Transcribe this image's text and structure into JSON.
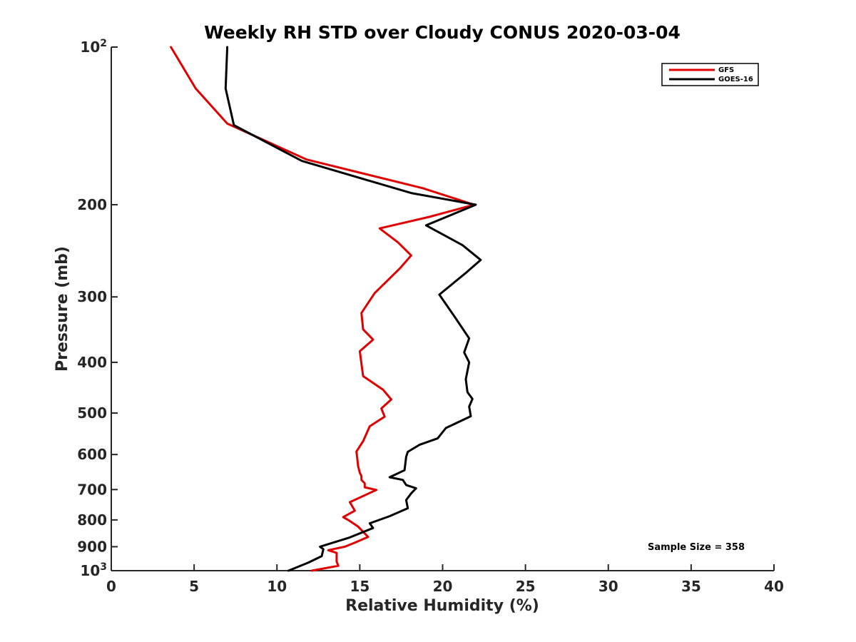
{
  "chart_data": {
    "type": "line",
    "title": "Weekly RH STD over Cloudy CONUS 2020-03-04",
    "xlabel": "Relative Humidity (%)",
    "ylabel": "Pressure (mb)",
    "xlim": [
      0,
      40
    ],
    "ylim": [
      100,
      1000
    ],
    "y_scale": "log",
    "y_reversed": true,
    "x_ticks": [
      "0",
      "5",
      "10",
      "15",
      "20",
      "25",
      "30",
      "35",
      "40"
    ],
    "y_ticks": [
      {
        "value": 100,
        "base": "10",
        "exp": "2"
      },
      {
        "value": 200,
        "label": "200"
      },
      {
        "value": 300,
        "label": "300"
      },
      {
        "value": 400,
        "label": "400"
      },
      {
        "value": 500,
        "label": "500"
      },
      {
        "value": 600,
        "label": "600"
      },
      {
        "value": 700,
        "label": "700"
      },
      {
        "value": 800,
        "label": "800"
      },
      {
        "value": 900,
        "label": "900"
      },
      {
        "value": 1000,
        "base": "10",
        "exp": "3"
      }
    ],
    "grid": false,
    "legend_position": "top-right",
    "annotation": "Sample Size = 358",
    "series": [
      {
        "name": "GFS",
        "color": "#e00000",
        "points": [
          [
            3.6,
            100
          ],
          [
            5.1,
            120
          ],
          [
            7.0,
            140
          ],
          [
            11.8,
            164
          ],
          [
            18.8,
            186
          ],
          [
            21.9,
            200
          ],
          [
            19.2,
            211
          ],
          [
            16.2,
            222
          ],
          [
            17.3,
            236
          ],
          [
            18.1,
            250
          ],
          [
            17.4,
            265
          ],
          [
            15.9,
            295
          ],
          [
            15.1,
            322
          ],
          [
            15.2,
            346
          ],
          [
            15.8,
            362
          ],
          [
            15.0,
            381
          ],
          [
            15.2,
            425
          ],
          [
            16.4,
            451
          ],
          [
            16.9,
            471
          ],
          [
            16.3,
            490
          ],
          [
            16.5,
            508
          ],
          [
            15.6,
            530
          ],
          [
            15.2,
            566
          ],
          [
            14.8,
            592
          ],
          [
            14.9,
            632
          ],
          [
            15.0,
            650
          ],
          [
            15.1,
            660
          ],
          [
            15.1,
            671
          ],
          [
            15.3,
            681
          ],
          [
            15.3,
            693
          ],
          [
            16.0,
            701
          ],
          [
            14.4,
            740
          ],
          [
            14.7,
            768
          ],
          [
            14.0,
            790
          ],
          [
            14.3,
            800
          ],
          [
            14.9,
            824
          ],
          [
            15.5,
            862
          ],
          [
            14.7,
            884
          ],
          [
            14.1,
            900
          ],
          [
            13.1,
            914
          ],
          [
            13.6,
            925
          ],
          [
            13.6,
            960
          ],
          [
            13.7,
            979
          ],
          [
            12.1,
            1000
          ]
        ]
      },
      {
        "name": "GOES-16",
        "color": "#000000",
        "points": [
          [
            7.0,
            100
          ],
          [
            6.9,
            120
          ],
          [
            7.4,
            141
          ],
          [
            11.5,
            165
          ],
          [
            18.1,
            190
          ],
          [
            22.0,
            200
          ],
          [
            19.0,
            219
          ],
          [
            21.2,
            239
          ],
          [
            22.3,
            255
          ],
          [
            21.4,
            270
          ],
          [
            19.8,
            297
          ],
          [
            20.8,
            330
          ],
          [
            21.6,
            360
          ],
          [
            21.3,
            383
          ],
          [
            21.6,
            400
          ],
          [
            21.4,
            431
          ],
          [
            21.5,
            456
          ],
          [
            21.8,
            470
          ],
          [
            21.6,
            486
          ],
          [
            21.7,
            507
          ],
          [
            20.2,
            534
          ],
          [
            19.7,
            559
          ],
          [
            18.6,
            575
          ],
          [
            17.9,
            593
          ],
          [
            17.8,
            606
          ],
          [
            17.7,
            643
          ],
          [
            16.8,
            663
          ],
          [
            17.6,
            671
          ],
          [
            17.8,
            686
          ],
          [
            18.4,
            696
          ],
          [
            18.1,
            712
          ],
          [
            17.8,
            733
          ],
          [
            17.9,
            760
          ],
          [
            16.8,
            787
          ],
          [
            15.6,
            812
          ],
          [
            15.8,
            829
          ],
          [
            14.4,
            864
          ],
          [
            12.6,
            900
          ],
          [
            12.8,
            910
          ],
          [
            12.7,
            938
          ],
          [
            11.9,
            965
          ],
          [
            10.7,
            1000
          ]
        ]
      }
    ]
  }
}
